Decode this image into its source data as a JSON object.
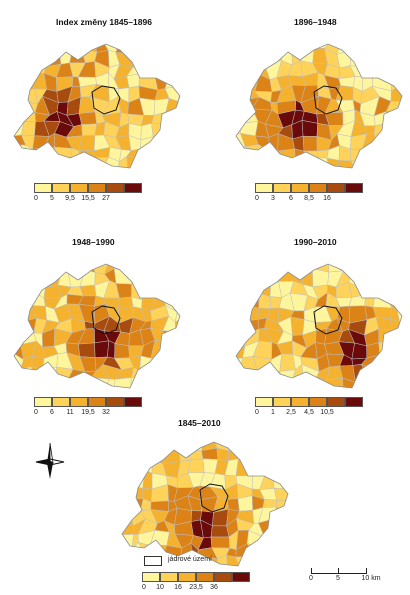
{
  "panels": [
    {
      "id": "p1",
      "title": "Index změny 1845–1896",
      "palette": [
        "#fff59d",
        "#ffd35a",
        "#f5b22e",
        "#dc8318",
        "#a84b0f",
        "#6b0a0a"
      ],
      "ticks": [
        "0",
        "5",
        "9,5",
        "15,5",
        "27"
      ]
    },
    {
      "id": "p2",
      "title": "1896–1948",
      "palette": [
        "#fff59d",
        "#ffd35a",
        "#f5b22e",
        "#dc8318",
        "#a84b0f",
        "#6b0a0a"
      ],
      "ticks": [
        "0",
        "3",
        "6",
        "8,5",
        "16"
      ]
    },
    {
      "id": "p3",
      "title": "1948–1990",
      "palette": [
        "#fff59d",
        "#ffd35a",
        "#f5b22e",
        "#dc8318",
        "#a84b0f",
        "#6b0a0a"
      ],
      "ticks": [
        "0",
        "6",
        "11",
        "19,5",
        "32"
      ]
    },
    {
      "id": "p4",
      "title": "1990–2010",
      "palette": [
        "#fff59d",
        "#ffd35a",
        "#f5b22e",
        "#dc8318",
        "#a84b0f",
        "#6b0a0a"
      ],
      "ticks": [
        "0",
        "1",
        "2,5",
        "4,5",
        "10,5"
      ]
    },
    {
      "id": "p5",
      "title": "1845–2010",
      "palette": [
        "#fff59d",
        "#ffd35a",
        "#f5b22e",
        "#dc8318",
        "#a84b0f",
        "#6b0a0a"
      ],
      "ticks": [
        "0",
        "10",
        "16",
        "23,5",
        "36"
      ]
    }
  ],
  "core_legend": {
    "label": "jádrové území"
  },
  "scale_bar": {
    "labels": [
      "0",
      "5",
      "10 km"
    ]
  },
  "north_arrow": {
    "icon": "north-arrow-icon"
  }
}
